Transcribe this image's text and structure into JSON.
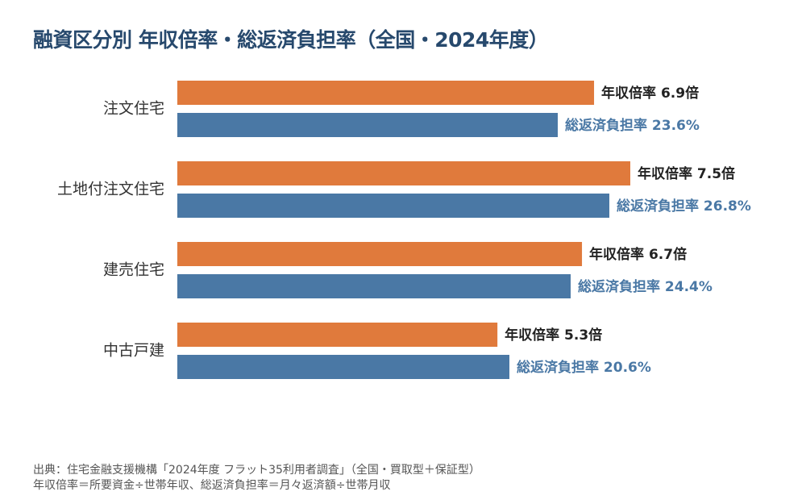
{
  "title": "融資区分別 年収倍率・総返済負担率（全国・2024年度）",
  "source_note": "出典：住宅金融支援機構「2024年度 フラット35利用者調査」（全国・買取型＋保証型）",
  "definition_note": "年収倍率＝所要資金÷世帯年収、総返済負担率＝月々返済額÷世帯月収",
  "colors": {
    "income_ratio": "#e07a3c",
    "repayment_ratio": "#4a78a5",
    "category_text": "#333333",
    "income_label_text": "#222222",
    "repayment_label_text": "#4a78a5"
  },
  "chart_data": {
    "type": "bar",
    "orientation": "horizontal",
    "categories": [
      "注文住宅",
      "土地付注文住宅",
      "建売住宅",
      "中古戸建"
    ],
    "series": [
      {
        "name": "年収倍率",
        "unit": "倍",
        "values": [
          6.9,
          7.5,
          6.7,
          5.3
        ],
        "labels": [
          "年収倍率 6.9倍",
          "年収倍率 7.5倍",
          "年収倍率 6.7倍",
          "年収倍率 5.3倍"
        ]
      },
      {
        "name": "総返済負担率",
        "unit": "%",
        "values": [
          23.6,
          26.8,
          24.4,
          20.6
        ],
        "labels": [
          "総返済負担率 23.6%",
          "総返済負担率 26.8%",
          "総返済負担率 24.4%",
          "総返済負担率 20.6%"
        ]
      }
    ],
    "legend": "none",
    "grid": false
  }
}
